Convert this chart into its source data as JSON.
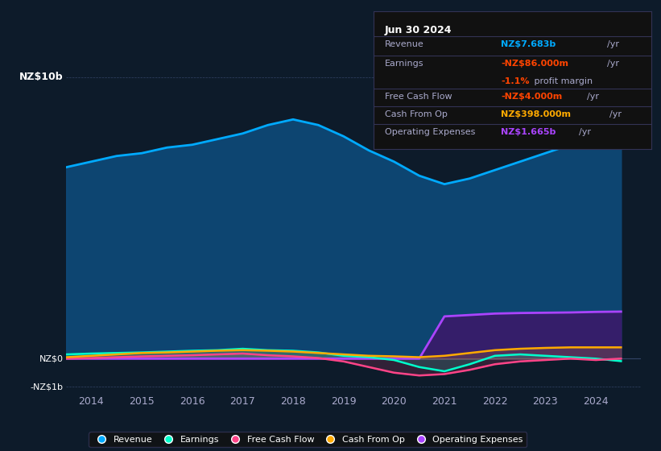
{
  "background_color": "#0d1b2a",
  "plot_bg_color": "#0d1b2a",
  "ylabel": "NZ$10b",
  "y_neg_label": "-NZ$1b",
  "y_zero_label": "NZ$0",
  "x_ticks": [
    2014,
    2015,
    2016,
    2017,
    2018,
    2019,
    2020,
    2021,
    2022,
    2023,
    2024
  ],
  "ylim": [
    -1.2,
    10.5
  ],
  "xlim": [
    2013.5,
    2024.9
  ],
  "revenue_color": "#00aaff",
  "earnings_color": "#00ffcc",
  "fcf_color": "#ff4488",
  "cashfromop_color": "#ffaa00",
  "opex_color": "#aa44ff",
  "revenue_fill_color": "#0d4a7a",
  "opex_fill_color": "#3a1a6a",
  "info_box": {
    "date": "Jun 30 2024",
    "revenue_val": "NZ$7.683b",
    "revenue_color": "#00aaff",
    "earnings_val": "-NZ$86.000m",
    "earnings_color": "#ff4400",
    "margin_val": "-1.1%",
    "margin_color": "#ff4400",
    "fcf_val": "-NZ$4.000m",
    "fcf_color": "#ff4400",
    "cashfromop_val": "NZ$398.000m",
    "cashfromop_color": "#ffaa00",
    "opex_val": "NZ$1.665b",
    "opex_color": "#aa44ff"
  },
  "revenue": {
    "x": [
      2013.5,
      2014.0,
      2014.5,
      2015.0,
      2015.5,
      2016.0,
      2016.5,
      2017.0,
      2017.5,
      2018.0,
      2018.5,
      2019.0,
      2019.5,
      2020.0,
      2020.5,
      2021.0,
      2021.5,
      2022.0,
      2022.5,
      2023.0,
      2023.5,
      2024.0,
      2024.5
    ],
    "y": [
      6.8,
      7.0,
      7.2,
      7.3,
      7.5,
      7.6,
      7.8,
      8.0,
      8.3,
      8.5,
      8.3,
      7.9,
      7.4,
      7.0,
      6.5,
      6.2,
      6.4,
      6.7,
      7.0,
      7.3,
      7.6,
      7.7,
      7.7
    ]
  },
  "earnings": {
    "x": [
      2013.5,
      2014.0,
      2014.5,
      2015.0,
      2015.5,
      2016.0,
      2016.5,
      2017.0,
      2017.5,
      2018.0,
      2018.5,
      2019.0,
      2019.5,
      2020.0,
      2020.5,
      2021.0,
      2021.5,
      2022.0,
      2022.5,
      2023.0,
      2023.5,
      2024.0,
      2024.5
    ],
    "y": [
      0.15,
      0.18,
      0.2,
      0.22,
      0.25,
      0.28,
      0.3,
      0.35,
      0.3,
      0.28,
      0.22,
      0.1,
      0.05,
      -0.05,
      -0.3,
      -0.45,
      -0.2,
      0.1,
      0.15,
      0.1,
      0.05,
      0.0,
      -0.09
    ]
  },
  "fcf": {
    "x": [
      2013.5,
      2014.0,
      2014.5,
      2015.0,
      2015.5,
      2016.0,
      2016.5,
      2017.0,
      2017.5,
      2018.0,
      2018.5,
      2019.0,
      2019.5,
      2020.0,
      2020.5,
      2021.0,
      2021.5,
      2022.0,
      2022.5,
      2023.0,
      2023.5,
      2024.0,
      2024.5
    ],
    "y": [
      0.0,
      0.02,
      0.05,
      0.08,
      0.1,
      0.12,
      0.15,
      0.18,
      0.12,
      0.08,
      0.02,
      -0.1,
      -0.3,
      -0.5,
      -0.6,
      -0.55,
      -0.4,
      -0.2,
      -0.1,
      -0.05,
      0.0,
      -0.05,
      0.0
    ]
  },
  "cashfromop": {
    "x": [
      2013.5,
      2014.0,
      2014.5,
      2015.0,
      2015.5,
      2016.0,
      2016.5,
      2017.0,
      2017.5,
      2018.0,
      2018.5,
      2019.0,
      2019.5,
      2020.0,
      2020.5,
      2021.0,
      2021.5,
      2022.0,
      2022.5,
      2023.0,
      2023.5,
      2024.0,
      2024.5
    ],
    "y": [
      0.05,
      0.1,
      0.15,
      0.2,
      0.22,
      0.25,
      0.28,
      0.3,
      0.28,
      0.25,
      0.2,
      0.15,
      0.1,
      0.08,
      0.05,
      0.1,
      0.2,
      0.3,
      0.35,
      0.38,
      0.4,
      0.4,
      0.4
    ]
  },
  "opex": {
    "x": [
      2013.5,
      2014.0,
      2014.5,
      2015.0,
      2015.5,
      2016.0,
      2016.5,
      2017.0,
      2017.5,
      2018.0,
      2018.5,
      2019.0,
      2019.5,
      2020.0,
      2020.5,
      2021.0,
      2021.5,
      2022.0,
      2022.5,
      2023.0,
      2023.5,
      2024.0,
      2024.5
    ],
    "y": [
      0.0,
      0.0,
      0.0,
      0.0,
      0.0,
      0.0,
      0.0,
      0.0,
      0.0,
      0.0,
      0.0,
      0.0,
      0.0,
      0.0,
      0.0,
      1.5,
      1.55,
      1.6,
      1.62,
      1.63,
      1.64,
      1.66,
      1.67
    ]
  }
}
